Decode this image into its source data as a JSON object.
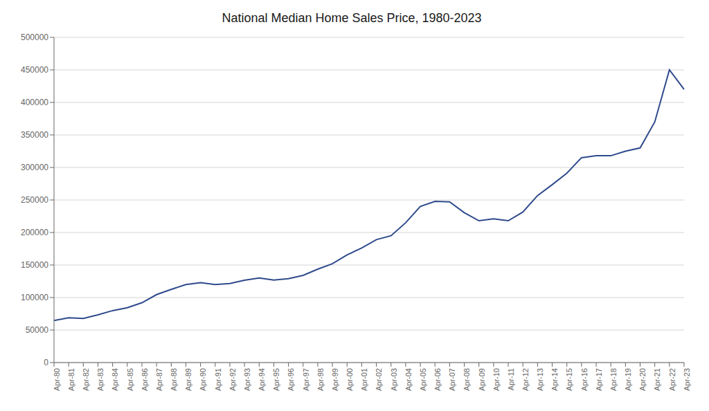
{
  "chart_data": {
    "type": "line",
    "title": "National Median Home Sales Price, 1980-2023",
    "categories": [
      "Apr-80",
      "Apr-81",
      "Apr-82",
      "Apr-83",
      "Apr-84",
      "Apr-85",
      "Apr-86",
      "Apr-87",
      "Apr-88",
      "Apr-89",
      "Apr-90",
      "Apr-91",
      "Apr-92",
      "Apr-93",
      "Apr-94",
      "Apr-95",
      "Apr-96",
      "Apr-97",
      "Apr-98",
      "Apr-99",
      "Apr-00",
      "Apr-01",
      "Apr-02",
      "Apr-03",
      "Apr-04",
      "Apr-05",
      "Apr-06",
      "Apr-07",
      "Apr-08",
      "Apr-09",
      "Apr-10",
      "Apr-11",
      "Apr-12",
      "Apr-13",
      "Apr-14",
      "Apr-15",
      "Apr-16",
      "Apr-17",
      "Apr-18",
      "Apr-19",
      "Apr-20",
      "Apr-21",
      "Apr-22",
      "Apr-23"
    ],
    "values": [
      64700,
      68900,
      67800,
      73400,
      79900,
      84300,
      92000,
      104500,
      112500,
      120000,
      122900,
      120000,
      121500,
      126500,
      130000,
      126900,
      129000,
      134000,
      143600,
      152000,
      165500,
      176200,
      189000,
      195000,
      215000,
      240000,
      247900,
      247000,
      230400,
      218000,
      221000,
      218000,
      231500,
      256700,
      273500,
      291200,
      315000,
      318000,
      318000,
      325000,
      330000,
      370000,
      450000,
      420000
    ],
    "color": "#2E4A8C",
    "ylim": [
      0,
      500000
    ],
    "yticks": [
      0,
      50000,
      100000,
      150000,
      200000,
      250000,
      300000,
      350000,
      400000,
      450000,
      500000
    ],
    "grid": true
  }
}
